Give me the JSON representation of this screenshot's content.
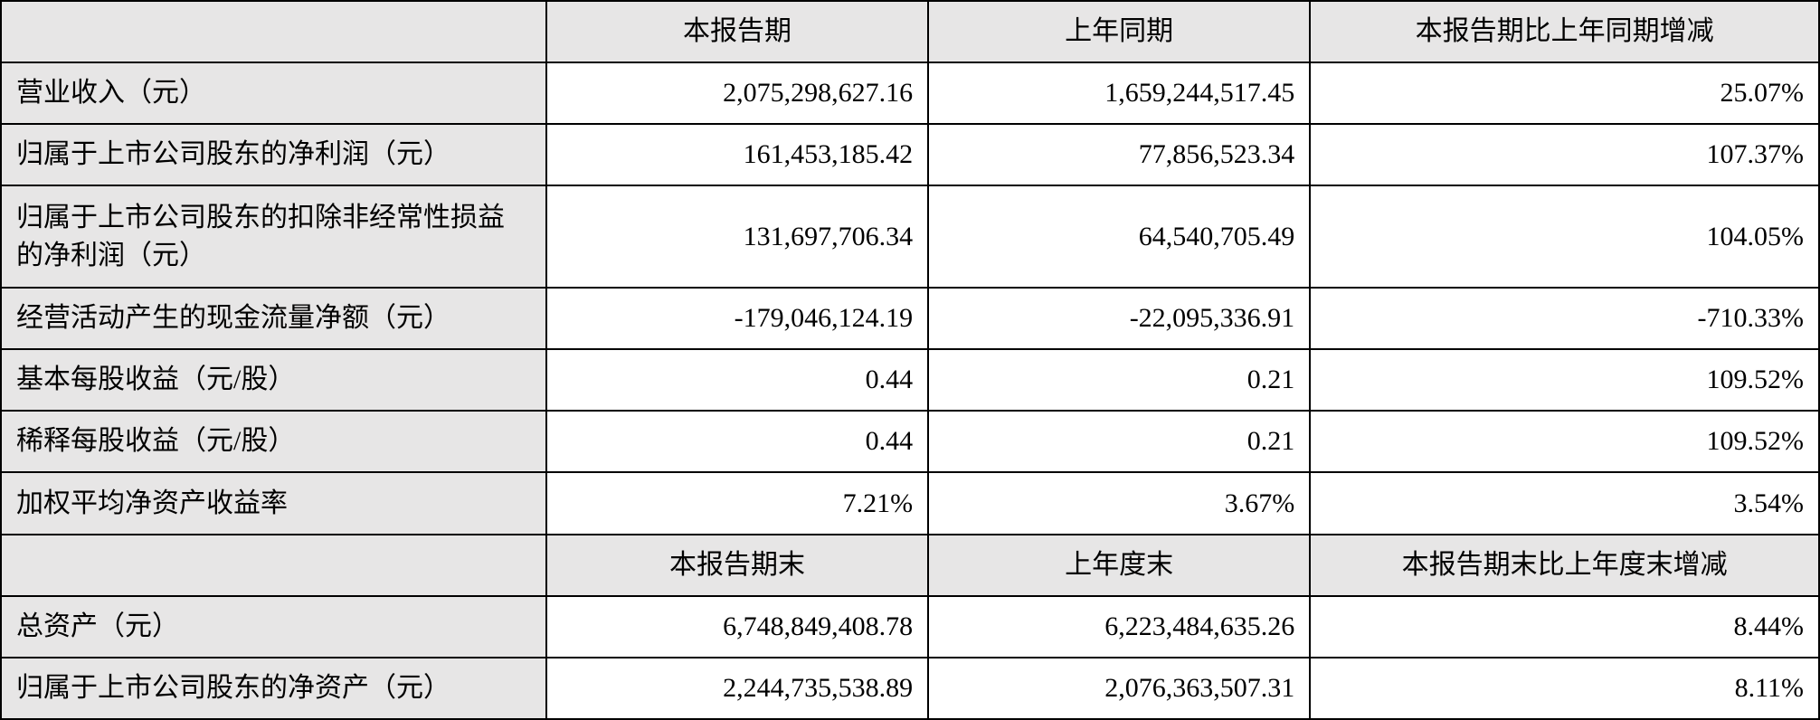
{
  "table": {
    "type": "table",
    "colors": {
      "header_bg": "#e7e6e6",
      "cell_bg": "#ffffff",
      "border": "#000000",
      "text": "#000000"
    },
    "font": {
      "family": "SimSun",
      "size_pt": 22
    },
    "col_widths_pct": [
      30,
      21,
      21,
      28
    ],
    "header1": {
      "blank": "",
      "col1": "本报告期",
      "col2": "上年同期",
      "col3": "本报告期比上年同期增减"
    },
    "rows1": [
      {
        "label": "营业收入（元）",
        "v1": "2,075,298,627.16",
        "v2": "1,659,244,517.45",
        "v3": "25.07%"
      },
      {
        "label": "归属于上市公司股东的净利润（元）",
        "v1": "161,453,185.42",
        "v2": "77,856,523.34",
        "v3": "107.37%"
      },
      {
        "label": "归属于上市公司股东的扣除非经常性损益的净利润（元）",
        "v1": "131,697,706.34",
        "v2": "64,540,705.49",
        "v3": "104.05%"
      },
      {
        "label": "经营活动产生的现金流量净额（元）",
        "v1": "-179,046,124.19",
        "v2": "-22,095,336.91",
        "v3": "-710.33%"
      },
      {
        "label": "基本每股收益（元/股）",
        "v1": "0.44",
        "v2": "0.21",
        "v3": "109.52%"
      },
      {
        "label": "稀释每股收益（元/股）",
        "v1": "0.44",
        "v2": "0.21",
        "v3": "109.52%"
      },
      {
        "label": "加权平均净资产收益率",
        "v1": "7.21%",
        "v2": "3.67%",
        "v3": "3.54%"
      }
    ],
    "header2": {
      "blank": "",
      "col1": "本报告期末",
      "col2": "上年度末",
      "col3": "本报告期末比上年度末增减"
    },
    "rows2": [
      {
        "label": "总资产（元）",
        "v1": "6,748,849,408.78",
        "v2": "6,223,484,635.26",
        "v3": "8.44%"
      },
      {
        "label": "归属于上市公司股东的净资产（元）",
        "v1": "2,244,735,538.89",
        "v2": "2,076,363,507.31",
        "v3": "8.11%"
      }
    ]
  }
}
